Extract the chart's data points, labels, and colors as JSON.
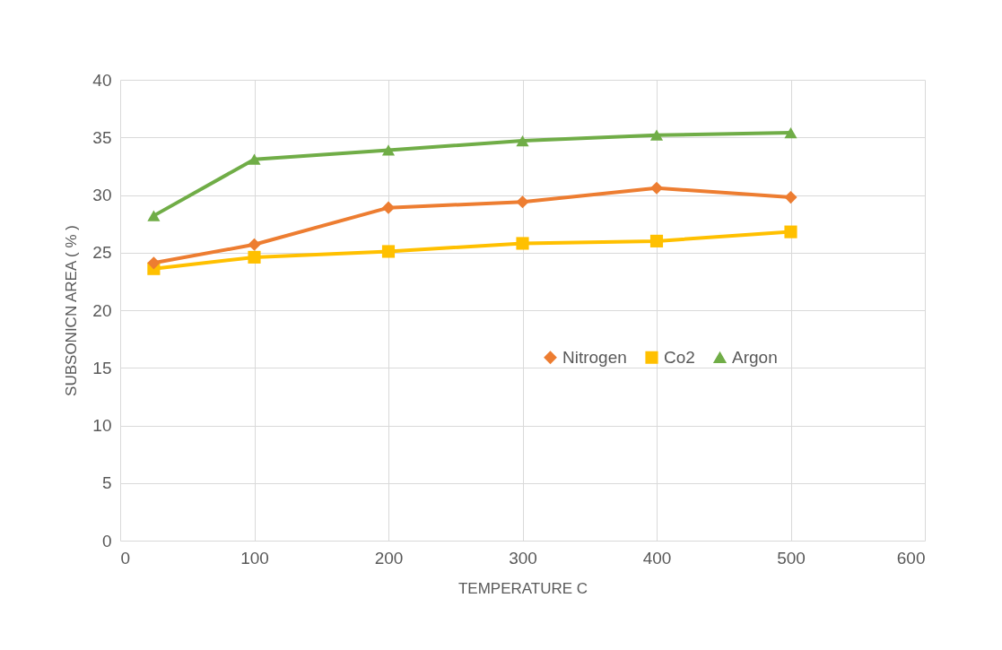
{
  "chart_data": {
    "type": "line",
    "xlabel": "TEMPERATURE C",
    "ylabel": "SUBSONICN AREA ( % )",
    "x": [
      25,
      100,
      200,
      300,
      400,
      500
    ],
    "series": [
      {
        "name": "Nitrogen",
        "color": "#ed7d31",
        "marker": "diamond",
        "values": [
          24.1,
          25.7,
          28.9,
          29.4,
          30.6,
          29.8
        ]
      },
      {
        "name": "Co2",
        "color": "#ffc000",
        "marker": "square",
        "values": [
          23.6,
          24.6,
          25.1,
          25.8,
          26.0,
          26.8
        ]
      },
      {
        "name": "Argon",
        "color": "#70ad47",
        "marker": "triangle",
        "values": [
          28.2,
          33.1,
          33.9,
          34.7,
          35.2,
          35.4
        ]
      }
    ],
    "xlim": [
      0,
      600
    ],
    "xticks": [
      0,
      100,
      200,
      300,
      400,
      500,
      600
    ],
    "ylim": [
      0,
      40
    ],
    "yticks": [
      0,
      5,
      10,
      15,
      20,
      25,
      30,
      35,
      40
    ],
    "grid": true,
    "legend": "right",
    "line_style": "solid"
  }
}
